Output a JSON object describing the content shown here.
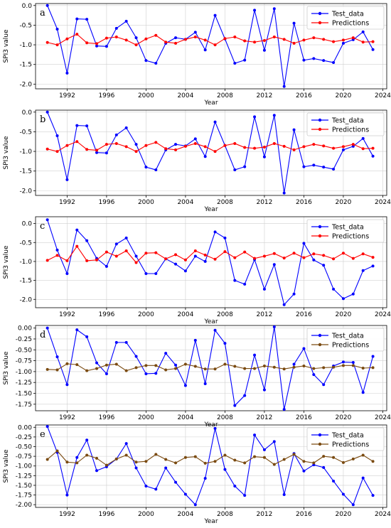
{
  "x_years": [
    1990,
    1991,
    1992,
    1993,
    1994,
    1995,
    1996,
    1997,
    1998,
    1999,
    2000,
    2001,
    2002,
    2003,
    2004,
    2005,
    2006,
    2007,
    2008,
    2009,
    2010,
    2011,
    2012,
    2013,
    2014,
    2015,
    2016,
    2017,
    2018,
    2019,
    2020,
    2021,
    2022,
    2023
  ],
  "chart_data": [
    {
      "type": "line",
      "panel_label": "a",
      "xlabel": "Year",
      "ylabel": "SPI3 value",
      "xlim": [
        1988.8,
        2024.4
      ],
      "ylim": [
        -2.12,
        0.05
      ],
      "xticks": [
        1992,
        1996,
        2000,
        2004,
        2008,
        2012,
        2016,
        2020,
        2024
      ],
      "xtick_labels": [
        "1992",
        "1996",
        "2000",
        "2004",
        "2008",
        "2012",
        "2016",
        "2020",
        "2024"
      ],
      "yticks": [
        0,
        -0.5,
        -1,
        -1.5,
        -2
      ],
      "ytick_labels": [
        "0.0",
        "-0.5",
        "-1.0",
        "-1.5",
        "-2.0"
      ],
      "grid": true,
      "legend": "upper-right",
      "series": [
        {
          "name": "Test_data",
          "color": "#0000ff",
          "marker": "circle",
          "values": [
            0.0,
            -0.6,
            -1.72,
            -0.34,
            -0.35,
            -1.03,
            -1.04,
            -0.58,
            -0.4,
            -0.82,
            -1.4,
            -1.47,
            -0.96,
            -0.82,
            -0.86,
            -0.68,
            -1.13,
            -0.25,
            -0.85,
            -1.47,
            -1.39,
            -0.12,
            -1.14,
            -0.08,
            -2.06,
            -0.45,
            -1.39,
            -1.35,
            -1.4,
            -1.45,
            -0.96,
            -0.87,
            -0.67,
            -1.12
          ]
        },
        {
          "name": "Predictions",
          "color": "#ff0000",
          "marker": "circle",
          "values": [
            -0.94,
            -1.0,
            -0.85,
            -0.73,
            -0.95,
            -0.97,
            -0.83,
            -0.8,
            -0.88,
            -1.0,
            -0.85,
            -0.76,
            -0.93,
            -0.96,
            -0.86,
            -0.8,
            -0.88,
            -1.0,
            -0.84,
            -0.8,
            -0.9,
            -0.93,
            -0.89,
            -0.8,
            -0.86,
            -0.96,
            -0.88,
            -0.82,
            -0.86,
            -0.92,
            -0.88,
            -0.82,
            -0.93,
            -0.92
          ]
        }
      ]
    },
    {
      "type": "line",
      "panel_label": "b",
      "xlabel": "Year",
      "ylabel": "SPI3 value",
      "xlim": [
        1988.8,
        2024.4
      ],
      "ylim": [
        -2.12,
        0.05
      ],
      "xticks": [
        1992,
        1996,
        2000,
        2004,
        2008,
        2012,
        2016,
        2020,
        2024
      ],
      "xtick_labels": [
        "1992",
        "1996",
        "2000",
        "2004",
        "2008",
        "2012",
        "2016",
        "2020",
        "2024"
      ],
      "yticks": [
        0,
        -0.5,
        -1,
        -1.5,
        -2
      ],
      "ytick_labels": [
        "0.0",
        "-0.5",
        "-1.0",
        "-1.5",
        "-2.0"
      ],
      "grid": true,
      "legend": "upper-right",
      "series": [
        {
          "name": "Test_data",
          "color": "#0000ff",
          "marker": "circle",
          "values": [
            0.0,
            -0.6,
            -1.72,
            -0.34,
            -0.35,
            -1.03,
            -1.04,
            -0.58,
            -0.4,
            -0.82,
            -1.4,
            -1.47,
            -0.96,
            -0.82,
            -0.86,
            -0.68,
            -1.13,
            -0.25,
            -0.85,
            -1.47,
            -1.39,
            -0.12,
            -1.14,
            -0.08,
            -2.06,
            -0.45,
            -1.39,
            -1.35,
            -1.4,
            -1.45,
            -0.96,
            -0.87,
            -0.67,
            -1.12
          ]
        },
        {
          "name": "Predictions",
          "color": "#ff0000",
          "marker": "circle",
          "values": [
            -0.94,
            -1.0,
            -0.85,
            -0.75,
            -0.95,
            -0.97,
            -0.82,
            -0.8,
            -0.88,
            -1.0,
            -0.85,
            -0.77,
            -0.93,
            -0.96,
            -0.87,
            -0.8,
            -0.88,
            -1.0,
            -0.85,
            -0.8,
            -0.9,
            -0.92,
            -0.89,
            -0.8,
            -0.87,
            -0.96,
            -0.88,
            -0.82,
            -0.86,
            -0.92,
            -0.88,
            -0.82,
            -0.93,
            -0.92
          ]
        }
      ]
    },
    {
      "type": "line",
      "panel_label": "c",
      "xlabel": "Year",
      "ylabel": "SPI3 value",
      "xlim": [
        1988.8,
        2024.4
      ],
      "ylim": [
        -2.22,
        0.18
      ],
      "xticks": [
        1992,
        1996,
        2000,
        2004,
        2008,
        2012,
        2016,
        2020,
        2024
      ],
      "xtick_labels": [
        "1992",
        "1996",
        "2000",
        "2004",
        "2008",
        "2012",
        "2016",
        "2020",
        "2024"
      ],
      "yticks": [
        0,
        -0.5,
        -1,
        -1.5,
        -2
      ],
      "ytick_labels": [
        "0.0",
        "-0.5",
        "-1.0",
        "-1.5",
        "-2.0"
      ],
      "grid": true,
      "legend": "upper-right",
      "series": [
        {
          "name": "Test_data",
          "color": "#0000ff",
          "marker": "circle",
          "values": [
            0.1,
            -0.7,
            -1.32,
            -0.17,
            -0.45,
            -0.92,
            -1.13,
            -0.54,
            -0.38,
            -0.86,
            -1.32,
            -1.32,
            -0.93,
            -1.07,
            -1.25,
            -0.86,
            -1.0,
            -0.22,
            -0.38,
            -1.5,
            -1.6,
            -0.95,
            -1.73,
            -1.08,
            -2.14,
            -1.86,
            -0.52,
            -0.96,
            -1.1,
            -1.73,
            -1.98,
            -1.86,
            -1.24,
            -1.12
          ]
        },
        {
          "name": "Predictions",
          "color": "#ff0000",
          "marker": "circle",
          "values": [
            -0.97,
            -0.84,
            -0.98,
            -0.6,
            -0.98,
            -0.96,
            -0.75,
            -0.86,
            -0.72,
            -1.03,
            -0.78,
            -0.77,
            -0.93,
            -0.82,
            -0.96,
            -0.72,
            -0.83,
            -0.94,
            -0.74,
            -0.9,
            -0.75,
            -0.92,
            -0.86,
            -0.79,
            -0.91,
            -0.78,
            -0.9,
            -0.8,
            -0.84,
            -0.93,
            -0.78,
            -0.92,
            -0.8,
            -0.89
          ]
        }
      ]
    },
    {
      "type": "line",
      "panel_label": "d",
      "xlabel": "Year",
      "ylabel": "SPI3 value",
      "xlim": [
        1988.8,
        2024.4
      ],
      "ylim": [
        -1.9,
        0.06
      ],
      "xticks": [
        1992,
        1996,
        2000,
        2004,
        2008,
        2012,
        2016,
        2020,
        2024
      ],
      "xtick_labels": [
        "1992",
        "1996",
        "2000",
        "2004",
        "2008",
        "2012",
        "2016",
        "2020",
        "2024"
      ],
      "yticks": [
        0,
        -0.25,
        -0.5,
        -0.75,
        -1,
        -1.25,
        -1.5,
        -1.75
      ],
      "ytick_labels": [
        "0.00",
        "-0.25",
        "-0.50",
        "-0.75",
        "-1.00",
        "-1.25",
        "-1.50",
        "-1.75"
      ],
      "grid": true,
      "legend": "upper-right",
      "series": [
        {
          "name": "Test_data",
          "color": "#0000ff",
          "marker": "circle",
          "values": [
            0.0,
            -0.66,
            -1.3,
            -0.04,
            -0.2,
            -0.8,
            -1.05,
            -0.33,
            -0.33,
            -0.65,
            -1.05,
            -1.04,
            -0.58,
            -0.85,
            -1.32,
            -0.28,
            -1.28,
            -0.05,
            -0.35,
            -1.78,
            -1.55,
            -0.62,
            -1.42,
            0.03,
            -1.87,
            -0.83,
            -0.47,
            -1.07,
            -1.3,
            -0.87,
            -0.78,
            -0.79,
            -1.48,
            -0.65
          ]
        },
        {
          "name": "Predictions",
          "color": "#7a4a10",
          "marker": "circle",
          "values": [
            -0.95,
            -0.96,
            -0.82,
            -0.84,
            -0.98,
            -0.93,
            -0.85,
            -0.83,
            -0.98,
            -0.91,
            -0.86,
            -0.86,
            -0.96,
            -0.93,
            -0.83,
            -0.88,
            -0.94,
            -0.94,
            -0.83,
            -0.88,
            -0.93,
            -0.93,
            -0.87,
            -0.9,
            -0.94,
            -0.9,
            -0.87,
            -0.93,
            -0.91,
            -0.9,
            -0.86,
            -0.86,
            -0.92,
            -0.91
          ]
        }
      ]
    },
    {
      "type": "line",
      "panel_label": "e",
      "xlabel": "Year",
      "ylabel": "SPI3 value",
      "xlim": [
        1988.8,
        2024.4
      ],
      "ylim": [
        -2.07,
        0.06
      ],
      "xticks": [
        1992,
        1996,
        2000,
        2004,
        2008,
        2012,
        2016,
        2020,
        2024
      ],
      "xtick_labels": [
        "1992",
        "1996",
        "2000",
        "2004",
        "2008",
        "2012",
        "2016",
        "2020",
        "2024"
      ],
      "yticks": [
        0,
        -0.25,
        -0.5,
        -0.75,
        -1,
        -1.25,
        -1.5,
        -1.75,
        -2
      ],
      "ytick_labels": [
        "0.00",
        "-0.25",
        "-0.50",
        "-0.75",
        "-1.00",
        "-1.25",
        "-1.50",
        "-1.75",
        "-2.00"
      ],
      "grid": true,
      "legend": "upper-right",
      "series": [
        {
          "name": "Test_data",
          "color": "#0000ff",
          "marker": "circle",
          "values": [
            0.02,
            -0.65,
            -1.75,
            -0.78,
            -0.33,
            -1.12,
            -1.02,
            -0.82,
            -0.42,
            -1.05,
            -1.52,
            -1.6,
            -1.05,
            -1.42,
            -1.73,
            -2.0,
            -1.32,
            -0.03,
            -1.09,
            -1.52,
            -1.76,
            -0.2,
            -0.58,
            -0.37,
            -1.74,
            -0.68,
            -1.13,
            -0.97,
            -1.04,
            -1.39,
            -1.73,
            -2.0,
            -1.31,
            -1.76
          ]
        },
        {
          "name": "Predictions",
          "color": "#7a4a10",
          "marker": "circle",
          "values": [
            -0.83,
            -0.61,
            -0.9,
            -0.92,
            -0.72,
            -0.8,
            -0.98,
            -0.82,
            -0.72,
            -0.9,
            -0.88,
            -0.7,
            -0.83,
            -0.92,
            -0.78,
            -0.76,
            -0.93,
            -0.88,
            -0.72,
            -0.85,
            -0.92,
            -0.76,
            -0.78,
            -0.96,
            -0.83,
            -0.7,
            -0.88,
            -0.92,
            -0.75,
            -0.78,
            -0.91,
            -0.82,
            -0.72,
            -0.88
          ]
        }
      ]
    }
  ]
}
